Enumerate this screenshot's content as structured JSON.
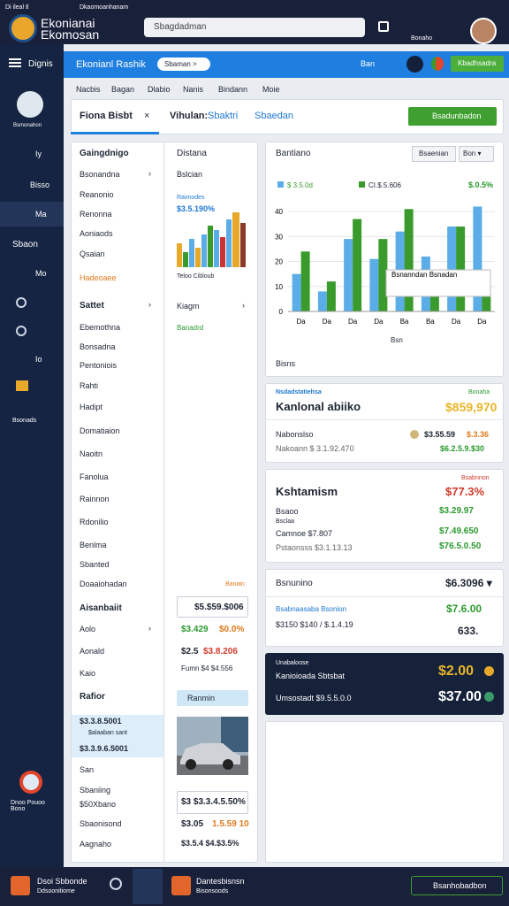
{
  "topbar": {
    "tab": "Di ileal tl",
    "window_title": "Dkaomoanhanam",
    "app_name": "Ekonianai Ekomosan",
    "search": "Sbagdadman",
    "user_label": "Bonaho"
  },
  "sidebar": {
    "profile": "Bsmonahon",
    "items": [
      "Dignis",
      "Iy",
      "Bisso",
      "Ma",
      "Sbaon",
      "Mo",
      "Io",
      "Bsonads"
    ],
    "footer": "Dnoo Pouoo Bono"
  },
  "header": {
    "title": "Ekonianl Rashik",
    "pill": "Sbaman >",
    "badge": "Ban",
    "button": "Kbadhsadra"
  },
  "tabs": [
    "Nacbis",
    "Bagan",
    "Dlabio",
    "Nanis",
    "Bindann",
    "Moie"
  ],
  "toolbar": {
    "tab1": "Fiona Bisbt",
    "tab2_label": "Vihulan:",
    "tab2_value": "Sbaktri",
    "tab3": "Sbaedan",
    "button": "Bsadunbadon"
  },
  "list1": {
    "heading": "Gaingdnigo",
    "items": [
      "Bsonandna",
      "Reanonio",
      "Renonna",
      "Aoniaods",
      "Qsaian"
    ],
    "alert": "Hadeoaee"
  },
  "list2": {
    "heading": "Sattet",
    "items": [
      "Ebemothna",
      "Bonsadna",
      "Pentoniois",
      "Rahti",
      "Hadipt",
      "Domatiaion",
      "Naoitn",
      "Fanolua",
      "Rainnon",
      "Rdonilio",
      "Benlma",
      "Sbanted",
      "Doaaiohadan"
    ]
  },
  "list3": {
    "heading": "Aisanbaiit",
    "items": [
      "Aolo",
      "Aonald",
      "Kaio"
    ]
  },
  "list4": {
    "heading": "Rafior",
    "selected": [
      "$3.3.8.5001",
      "$alaaban sant",
      "$3.3.9.6.5001"
    ],
    "items": [
      "San",
      "Sbaniing",
      "$50Xbano",
      "Sbaonisond",
      "Aagnaho"
    ]
  },
  "middle": {
    "heading": "Distana",
    "sub": "Bslcian",
    "mini_title": "Raimodes",
    "mini_value": "$3.5.190%",
    "mini_legend": "Teloo  Cibloub",
    "heading2": "Kiagm",
    "green_link": "Banadrd",
    "note": "Banain",
    "box1": "$5.$59.$006",
    "row1a": "$3.429",
    "row1b": "$0.0%",
    "row2a": "$2.5",
    "row2b": "$3.8.206",
    "row3": "Fumn $4 $4.556",
    "box2": "Ranmin",
    "row4": "$3 $3.3.4.5.50%",
    "row5a": "$3.05",
    "row5b": "1.5.59 10",
    "row6": "$3.5.4 $4.$3.5%"
  },
  "chart_card": {
    "title": "Bantiano",
    "dropdown1": "Bsaenian",
    "dropdown2": "Bon ▾",
    "legend_extra": "$.0.5%",
    "tooltip": "Bsnanndan Bsnadan",
    "x_label": "Bsn",
    "footer": "Bisns"
  },
  "card2": {
    "tag": "Nsdadstatiehsa",
    "tag2": "Bonaha",
    "title": "Kanlonal abiiko",
    "value": "$859,970",
    "row1_label": "Nabonslso",
    "row1_a": "$3.55.59",
    "row1_b": "$.3.36",
    "row2_label": "Nakoann $ 3.1.92.470",
    "row2_value": "$6.2.5.9.$30"
  },
  "card3": {
    "tag": "Bsabnnon",
    "title": "Kshtamism",
    "value": "$77.3%",
    "row1_label": "Bsaoo",
    "row1_value": "$3.29.97",
    "row2_label": "Bsclaa",
    "row3_label": "Camnoe $7.807",
    "row3_value": "$7.49.650",
    "row4_label": "Pstaonsss $3.1.13.13",
    "row4_value": "$76.5.0.50"
  },
  "card4": {
    "title": "Bsnunino",
    "value": "$6.3096 ▾",
    "row1_label": "Bsabnaasaba Bsonion",
    "row1_value": "$7.6.00",
    "row2_label": "$3150  $140 / $.1.4.19",
    "row2_value": "633."
  },
  "card5": {
    "tag": "Unabaloose",
    "title": "Kanioioada Sbtsbat",
    "value1": "$2.00",
    "row_label": "Umsostadt $9.5.5.0.0",
    "value2": "$37.00"
  },
  "bottombar": {
    "left_title": "Dsoi Sbbonde",
    "left_sub": "Ddsoonitiome",
    "mid_title": "Dantesbisnsn",
    "mid_sub": "Bisonsoods",
    "button": "Bsanhobadbon"
  },
  "chart_data": {
    "type": "bar",
    "categories": [
      "Da",
      "Da",
      "Da",
      "Da",
      "Ba",
      "Ba",
      "Da",
      "Da"
    ],
    "series": [
      {
        "name": "$ 3.5.0d",
        "color": "#5aade6",
        "values": [
          15,
          8,
          29,
          21,
          32,
          22,
          34,
          42
        ]
      },
      {
        "name": "CI.$.5.606",
        "color": "#3a9a2c",
        "values": [
          24,
          12,
          37,
          29,
          41,
          16,
          34,
          6
        ]
      }
    ],
    "ylim": [
      0,
      45
    ],
    "yticks": [
      0,
      10,
      20,
      30,
      40
    ],
    "grid": true
  }
}
